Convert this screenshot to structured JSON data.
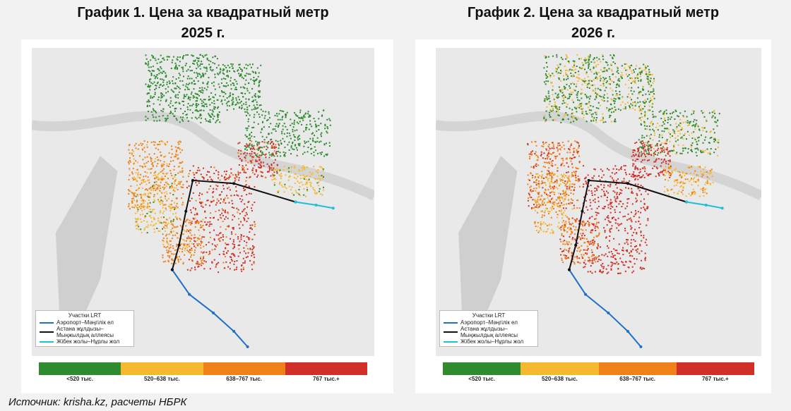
{
  "maps": [
    {
      "title": "График 1. Цена за квадратный метр",
      "subtitle": "2025 г.",
      "legend": {
        "title": "Участки LRT",
        "items": [
          "Аэропорт–Мәңгілік ел",
          "Астана жұлдызы–Мыңжылдық аллеясы",
          "Жібек жолы–Нұрлы жол"
        ]
      },
      "scale": [
        "<520 тыс.",
        "520–638 тыс.",
        "638–767 тыс.",
        "767 тыс.+"
      ]
    },
    {
      "title": "График 2. Цена за квадратный метр",
      "subtitle": "2026 г.",
      "legend": {
        "title": "Участки LRT",
        "items": [
          "Аэропорт–Мәңгілік ел",
          "Астана жұлдызы–Мыңжылдық аллеясы",
          "Жібек жолы–Нұрлы жол"
        ]
      },
      "scale": [
        "<520 тыс.",
        "520–638 тыс.",
        "638–767 тыс.",
        "767 тыс.+"
      ]
    }
  ],
  "source": "Источник: krisha.kz, расчеты НБРК"
}
